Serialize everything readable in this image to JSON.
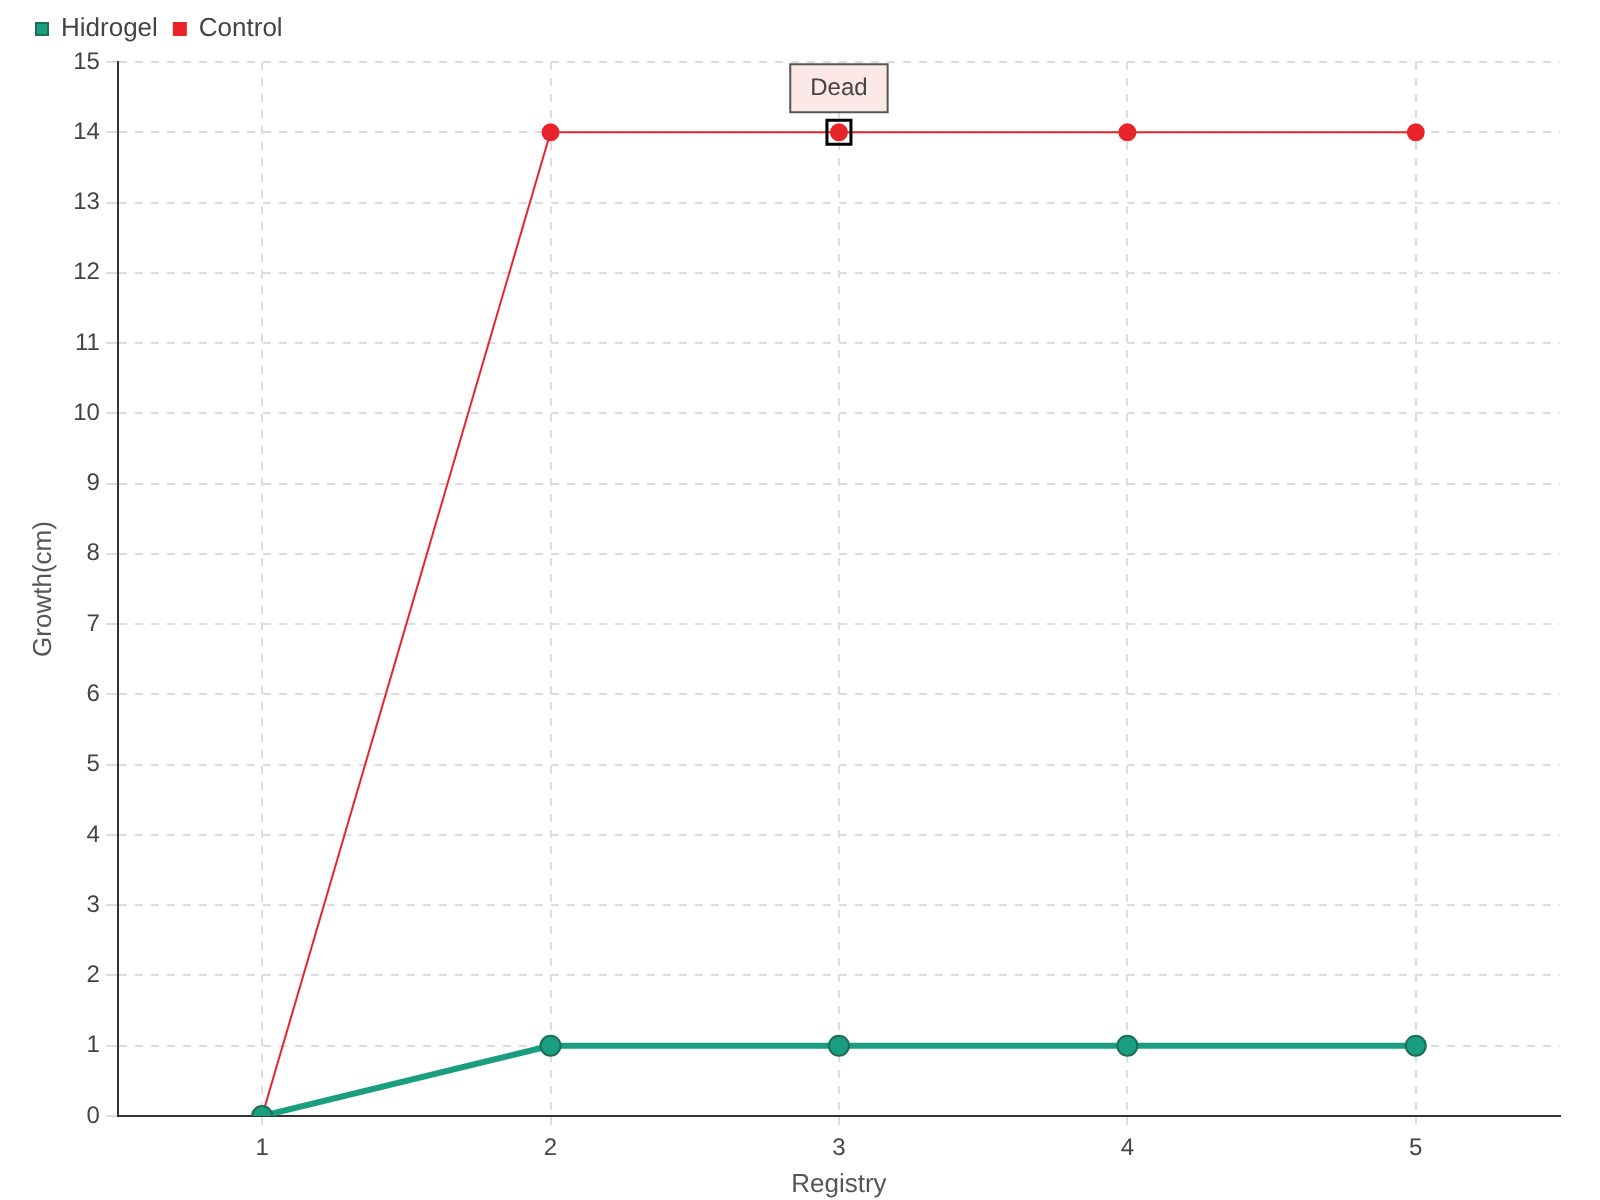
{
  "chart_data": {
    "type": "line",
    "xlabel": "Registry",
    "ylabel": "Growth(cm)",
    "categories": [
      "1",
      "2",
      "3",
      "4",
      "5"
    ],
    "series": [
      {
        "name": "Hidrogel",
        "color": "#1a9e80",
        "values": [
          0,
          1,
          1,
          1,
          1
        ]
      },
      {
        "name": "Control",
        "color": "#e8242a",
        "values": [
          0,
          14,
          14,
          14,
          14
        ]
      }
    ],
    "ylim": [
      0,
      15
    ],
    "yticks": [
      0,
      1,
      2,
      3,
      4,
      5,
      6,
      7,
      8,
      9,
      10,
      11,
      12,
      13,
      14,
      15
    ],
    "grid": true,
    "legend": "top left",
    "marker": "circle",
    "annotations": [
      {
        "text": "Dead",
        "x": "3",
        "y": 14
      }
    ]
  }
}
